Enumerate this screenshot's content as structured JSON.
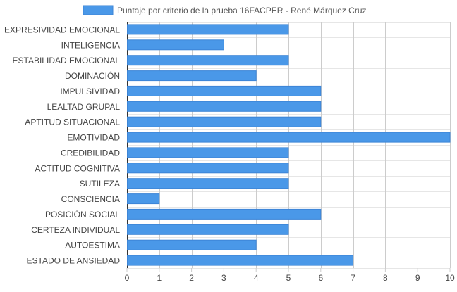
{
  "chart_data": {
    "type": "bar",
    "orientation": "horizontal",
    "categories": [
      "EXPRESIVIDAD EMOCIONAL",
      "INTELIGENCIA",
      "ESTABILIDAD EMOCIONAL",
      "DOMINACIÓN",
      "IMPULSIVIDAD",
      "LEALTAD GRUPAL",
      "APTITUD SITUACIONAL",
      "EMOTIVIDAD",
      "CREDIBILIDAD",
      "ACTITUD COGNITIVA",
      "SUTILEZA",
      "CONSCIENCIA",
      "POSICIÓN SOCIAL",
      "CERTEZA INDIVIDUAL",
      "AUTOESTIMA",
      "ESTADO DE ANSIEDAD"
    ],
    "series": [
      {
        "name": "Puntaje por criterio de la prueba 16FACPER - René Márquez Cruz",
        "values": [
          5,
          3,
          5,
          4,
          6,
          6,
          6,
          10,
          5,
          5,
          5,
          1,
          6,
          5,
          4,
          7
        ],
        "color": "#4a98e8",
        "border_color": "#3d85d6"
      }
    ],
    "xlim": [
      0,
      10
    ],
    "x_ticks": [
      "0",
      "1",
      "2",
      "3",
      "4",
      "5",
      "6",
      "7",
      "8",
      "9",
      "10"
    ],
    "grid": true,
    "legend_position": "top",
    "title": "",
    "xlabel": "",
    "ylabel": ""
  }
}
